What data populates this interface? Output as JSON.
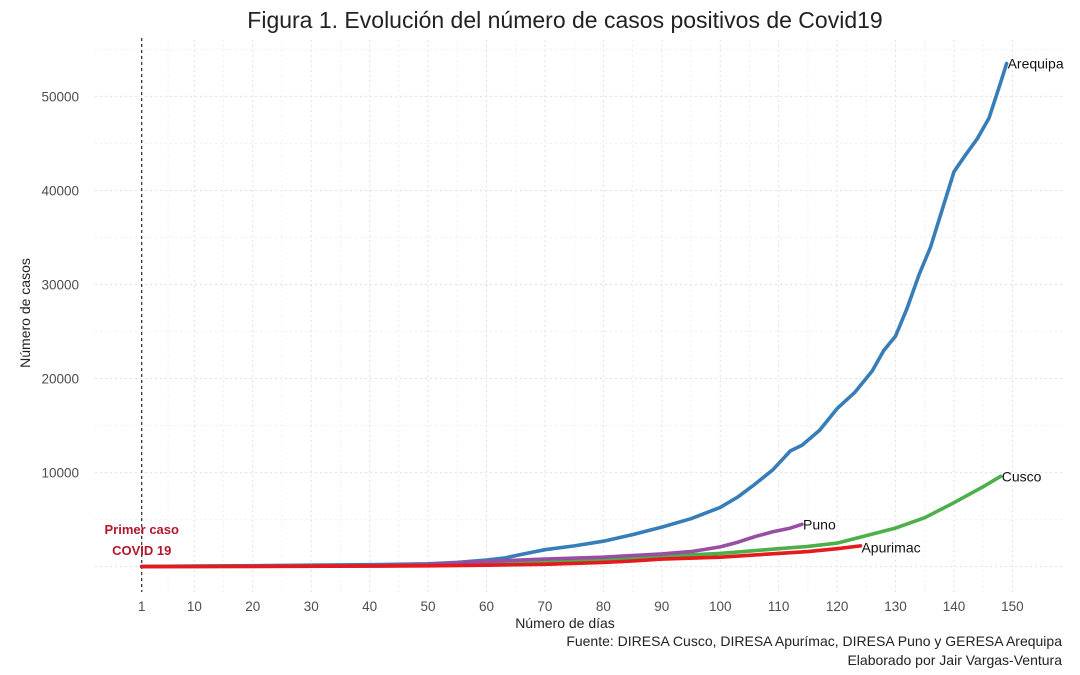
{
  "chart_data": {
    "type": "line",
    "title": "Figura 1. Evolución del número de casos positivos de Covid19",
    "xlabel": "Número de días",
    "ylabel": "Número de casos",
    "xlim": [
      -7,
      159
    ],
    "ylim": [
      -2700,
      56000
    ],
    "x_ticks": [
      1,
      10,
      20,
      30,
      40,
      50,
      60,
      70,
      80,
      90,
      100,
      110,
      120,
      130,
      140,
      150
    ],
    "y_ticks": [
      10000,
      20000,
      30000,
      40000,
      50000
    ],
    "grid": true,
    "legend": "none (direct labels at line ends)",
    "vline": {
      "x": 1,
      "style": "dashed",
      "color": "#000000"
    },
    "annotation": {
      "lines": [
        "Primer caso",
        "COVID 19"
      ],
      "color": "#b2182b"
    },
    "caption": [
      "Fuente: DIRESA Cusco, DIRESA Apurímac, DIRESA Puno y GERESA Arequipa",
      "Elaborado por Jair Vargas-Ventura"
    ],
    "series": [
      {
        "name": "Arequipa",
        "color": "#377eb8",
        "x": [
          1,
          10,
          20,
          30,
          40,
          50,
          55,
          60,
          63,
          66,
          70,
          75,
          80,
          85,
          90,
          95,
          100,
          103,
          106,
          109,
          112,
          114,
          117,
          120,
          123,
          126,
          128,
          130,
          132,
          134,
          136,
          138,
          140,
          142,
          144,
          146,
          148,
          149
        ],
        "values": [
          0,
          50,
          100,
          150,
          200,
          300,
          450,
          700,
          900,
          1300,
          1800,
          2200,
          2700,
          3400,
          4200,
          5100,
          6300,
          7400,
          8800,
          10300,
          12300,
          12900,
          14500,
          16800,
          18500,
          20800,
          23000,
          24500,
          27500,
          31000,
          34000,
          38000,
          42000,
          43800,
          45500,
          47700,
          51500,
          53500
        ]
      },
      {
        "name": "Cusco",
        "color": "#4daf4a",
        "x": [
          1,
          20,
          40,
          50,
          60,
          70,
          80,
          90,
          100,
          105,
          110,
          115,
          120,
          125,
          130,
          135,
          140,
          145,
          148
        ],
        "values": [
          0,
          30,
          80,
          130,
          250,
          450,
          750,
          1100,
          1400,
          1650,
          1900,
          2150,
          2500,
          3300,
          4100,
          5200,
          6800,
          8500,
          9600
        ]
      },
      {
        "name": "Puno",
        "color": "#984ea3",
        "x": [
          1,
          20,
          40,
          50,
          60,
          70,
          80,
          90,
          95,
          100,
          103,
          106,
          109,
          112,
          114
        ],
        "values": [
          0,
          50,
          100,
          250,
          550,
          800,
          1000,
          1350,
          1600,
          2100,
          2600,
          3200,
          3700,
          4100,
          4500
        ]
      },
      {
        "name": "Apurimac",
        "color": "#e41a1c",
        "x": [
          1,
          20,
          40,
          50,
          60,
          70,
          80,
          85,
          90,
          100,
          105,
          110,
          115,
          120,
          124
        ],
        "values": [
          0,
          20,
          50,
          90,
          150,
          250,
          450,
          600,
          800,
          1000,
          1200,
          1400,
          1600,
          1900,
          2200
        ]
      }
    ]
  }
}
